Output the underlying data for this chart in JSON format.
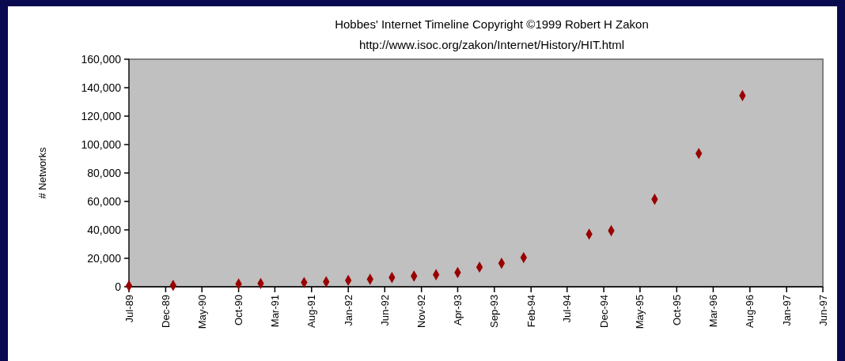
{
  "chart_data": {
    "type": "scatter",
    "title": "Hobbes' Internet Timeline Copyright ©1999 Robert H Zakon",
    "subtitle": "http://www.isoc.org/zakon/Internet/History/HIT.html",
    "ylabel": "# Networks",
    "x": [
      "1989-07",
      "1990-01",
      "1990-10",
      "1991-01",
      "1991-07",
      "1991-10",
      "1992-01",
      "1992-04",
      "1992-07",
      "1992-10",
      "1993-01",
      "1993-04",
      "1993-07",
      "1993-10",
      "1994-01",
      "1994-10",
      "1995-01",
      "1995-07",
      "1996-01",
      "1996-07"
    ],
    "series": [
      {
        "color": "#990000",
        "values": [
          700,
          1000,
          2000,
          2300,
          3000,
          3500,
          4500,
          5300,
          6500,
          7500,
          8500,
          10000,
          13800,
          16500,
          20500,
          37000,
          39400,
          61500,
          93700,
          134400
        ]
      }
    ],
    "marker": "diamond",
    "grid": false,
    "xlim": [
      "1989-07",
      "1997-06"
    ],
    "xticks": [
      {
        "value": "1989-07",
        "label": "Jul-89"
      },
      {
        "value": "1989-12",
        "label": "Dec-89"
      },
      {
        "value": "1990-05",
        "label": "May-90"
      },
      {
        "value": "1990-10",
        "label": "Oct-90"
      },
      {
        "value": "1991-03",
        "label": "Mar-91"
      },
      {
        "value": "1991-08",
        "label": "Aug-91"
      },
      {
        "value": "1992-01",
        "label": "Jan-92"
      },
      {
        "value": "1992-06",
        "label": "Jun-92"
      },
      {
        "value": "1992-11",
        "label": "Nov-92"
      },
      {
        "value": "1993-04",
        "label": "Apr-93"
      },
      {
        "value": "1993-09",
        "label": "Sep-93"
      },
      {
        "value": "1994-02",
        "label": "Feb-94"
      },
      {
        "value": "1994-07",
        "label": "Jul-94"
      },
      {
        "value": "1994-12",
        "label": "Dec-94"
      },
      {
        "value": "1995-05",
        "label": "May-95"
      },
      {
        "value": "1995-10",
        "label": "Oct-95"
      },
      {
        "value": "1996-03",
        "label": "Mar-96"
      },
      {
        "value": "1996-08",
        "label": "Aug-96"
      },
      {
        "value": "1997-01",
        "label": "Jan-97"
      },
      {
        "value": "1997-06",
        "label": "Jun-97"
      }
    ],
    "ylim": [
      0,
      160000
    ],
    "yticks": [
      0,
      {
        "value": 20000,
        "label": "20,000"
      },
      {
        "value": 40000,
        "label": "40,000"
      },
      {
        "value": 60000,
        "label": "60,000"
      },
      {
        "value": 80000,
        "label": "80,000"
      },
      {
        "value": 100000,
        "label": "100,000"
      },
      {
        "value": 120000,
        "label": "120,000"
      },
      {
        "value": 140000,
        "label": "140,000"
      },
      {
        "value": 160000,
        "label": "160,000"
      }
    ]
  }
}
